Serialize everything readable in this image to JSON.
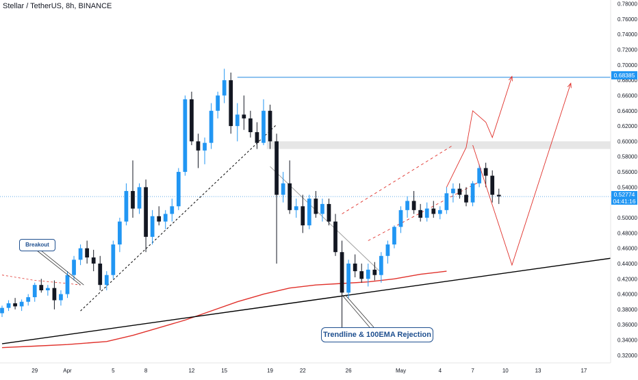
{
  "header": {
    "title": "Stellar / TetherUS, 8h, BINANCE"
  },
  "price_tags": {
    "level": "0.68385",
    "current": "0.52774",
    "countdown": "04:41:16"
  },
  "annotations": {
    "breakout": "Breakout",
    "trendline": "Trendline & 100EMA Rejection"
  },
  "colors": {
    "up": "#2196f3",
    "down": "#131722",
    "ema": "#e0302a",
    "trendline": "#000000",
    "projection": "#e0302a",
    "level": "#4a9ee6",
    "zone": "#e6e6e6",
    "axis_text": "#131722"
  },
  "chart_data": {
    "type": "candlestick",
    "title": "Stellar / TetherUS, 8h, BINANCE",
    "xlabel": "",
    "ylabel": "",
    "ylim": [
      0.31,
      0.785
    ],
    "xlim": [
      0,
      91
    ],
    "yticks": [
      "0.78000",
      "0.76000",
      "0.74000",
      "0.72000",
      "0.70000",
      "0.68000",
      "0.66000",
      "0.64000",
      "0.62000",
      "0.60000",
      "0.58000",
      "0.56000",
      "0.54000",
      "0.52000",
      "0.50000",
      "0.48000",
      "0.46000",
      "0.44000",
      "0.42000",
      "0.40000",
      "0.38000",
      "0.36000",
      "0.34000",
      "0.32000"
    ],
    "xticks": [
      {
        "label": "29",
        "x": 5
      },
      {
        "label": "Apr",
        "x": 10
      },
      {
        "label": "5",
        "x": 17
      },
      {
        "label": "8",
        "x": 22
      },
      {
        "label": "12",
        "x": 29
      },
      {
        "label": "15",
        "x": 34
      },
      {
        "label": "19",
        "x": 41
      },
      {
        "label": "22",
        "x": 46
      },
      {
        "label": "26",
        "x": 53
      },
      {
        "label": "May",
        "x": 61
      },
      {
        "label": "4",
        "x": 67
      },
      {
        "label": "7",
        "x": 72
      },
      {
        "label": "10",
        "x": 77
      },
      {
        "label": "13",
        "x": 82
      },
      {
        "label": "17",
        "x": 89
      }
    ],
    "ohlc": [
      [
        0.375,
        0.385,
        0.37,
        0.382
      ],
      [
        0.382,
        0.392,
        0.378,
        0.388
      ],
      [
        0.388,
        0.395,
        0.38,
        0.384
      ],
      [
        0.384,
        0.393,
        0.378,
        0.39
      ],
      [
        0.39,
        0.4,
        0.385,
        0.396
      ],
      [
        0.396,
        0.415,
        0.39,
        0.412
      ],
      [
        0.412,
        0.42,
        0.402,
        0.405
      ],
      [
        0.405,
        0.412,
        0.398,
        0.408
      ],
      [
        0.408,
        0.418,
        0.38,
        0.392
      ],
      [
        0.392,
        0.405,
        0.385,
        0.4
      ],
      [
        0.4,
        0.43,
        0.395,
        0.425
      ],
      [
        0.425,
        0.45,
        0.418,
        0.445
      ],
      [
        0.445,
        0.465,
        0.438,
        0.46
      ],
      [
        0.46,
        0.47,
        0.44,
        0.448
      ],
      [
        0.448,
        0.458,
        0.43,
        0.44
      ],
      [
        0.44,
        0.45,
        0.405,
        0.412
      ],
      [
        0.412,
        0.43,
        0.405,
        0.425
      ],
      [
        0.425,
        0.47,
        0.42,
        0.465
      ],
      [
        0.465,
        0.5,
        0.455,
        0.495
      ],
      [
        0.495,
        0.545,
        0.49,
        0.535
      ],
      [
        0.535,
        0.575,
        0.5,
        0.512
      ],
      [
        0.512,
        0.545,
        0.505,
        0.54
      ],
      [
        0.54,
        0.55,
        0.455,
        0.475
      ],
      [
        0.475,
        0.51,
        0.465,
        0.502
      ],
      [
        0.502,
        0.515,
        0.49,
        0.495
      ],
      [
        0.495,
        0.51,
        0.485,
        0.505
      ],
      [
        0.505,
        0.525,
        0.495,
        0.515
      ],
      [
        0.515,
        0.565,
        0.51,
        0.56
      ],
      [
        0.56,
        0.66,
        0.555,
        0.655
      ],
      [
        0.655,
        0.665,
        0.595,
        0.6
      ],
      [
        0.6,
        0.61,
        0.565,
        0.588
      ],
      [
        0.588,
        0.605,
        0.57,
        0.598
      ],
      [
        0.598,
        0.65,
        0.59,
        0.64
      ],
      [
        0.64,
        0.665,
        0.63,
        0.66
      ],
      [
        0.66,
        0.695,
        0.65,
        0.68
      ],
      [
        0.68,
        0.69,
        0.61,
        0.62
      ],
      [
        0.62,
        0.65,
        0.6,
        0.635
      ],
      [
        0.635,
        0.66,
        0.615,
        0.63
      ],
      [
        0.63,
        0.64,
        0.605,
        0.612
      ],
      [
        0.612,
        0.625,
        0.59,
        0.598
      ],
      [
        0.598,
        0.655,
        0.595,
        0.64
      ],
      [
        0.64,
        0.648,
        0.59,
        0.6
      ],
      [
        0.6,
        0.61,
        0.44,
        0.53
      ],
      [
        0.53,
        0.56,
        0.52,
        0.545
      ],
      [
        0.545,
        0.575,
        0.505,
        0.51
      ],
      [
        0.51,
        0.525,
        0.5,
        0.515
      ],
      [
        0.515,
        0.53,
        0.48,
        0.49
      ],
      [
        0.49,
        0.53,
        0.485,
        0.525
      ],
      [
        0.525,
        0.535,
        0.5,
        0.505
      ],
      [
        0.505,
        0.525,
        0.495,
        0.518
      ],
      [
        0.518,
        0.525,
        0.49,
        0.495
      ],
      [
        0.495,
        0.505,
        0.45,
        0.455
      ],
      [
        0.455,
        0.47,
        0.355,
        0.402
      ],
      [
        0.402,
        0.445,
        0.395,
        0.44
      ],
      [
        0.44,
        0.452,
        0.422,
        0.43
      ],
      [
        0.43,
        0.44,
        0.415,
        0.42
      ],
      [
        0.42,
        0.44,
        0.41,
        0.432
      ],
      [
        0.432,
        0.442,
        0.418,
        0.425
      ],
      [
        0.425,
        0.455,
        0.415,
        0.45
      ],
      [
        0.45,
        0.47,
        0.44,
        0.465
      ],
      [
        0.465,
        0.49,
        0.46,
        0.488
      ],
      [
        0.488,
        0.515,
        0.48,
        0.51
      ],
      [
        0.51,
        0.528,
        0.5,
        0.522
      ],
      [
        0.522,
        0.535,
        0.505,
        0.51
      ],
      [
        0.51,
        0.518,
        0.495,
        0.5
      ],
      [
        0.5,
        0.52,
        0.495,
        0.512
      ],
      [
        0.512,
        0.522,
        0.5,
        0.505
      ],
      [
        0.505,
        0.515,
        0.498,
        0.51
      ],
      [
        0.51,
        0.54,
        0.505,
        0.532
      ],
      [
        0.532,
        0.545,
        0.52,
        0.538
      ],
      [
        0.538,
        0.545,
        0.525,
        0.53
      ],
      [
        0.53,
        0.54,
        0.515,
        0.52
      ],
      [
        0.52,
        0.548,
        0.515,
        0.545
      ],
      [
        0.545,
        0.57,
        0.54,
        0.565
      ],
      [
        0.565,
        0.572,
        0.54,
        0.555
      ],
      [
        0.555,
        0.562,
        0.52,
        0.53
      ],
      [
        0.53,
        0.538,
        0.518,
        0.528
      ]
    ],
    "ema100": [
      [
        0,
        0.33
      ],
      [
        5,
        0.332
      ],
      [
        10,
        0.334
      ],
      [
        16,
        0.338
      ],
      [
        20,
        0.346
      ],
      [
        24,
        0.356
      ],
      [
        28,
        0.366
      ],
      [
        32,
        0.378
      ],
      [
        36,
        0.39
      ],
      [
        40,
        0.4
      ],
      [
        44,
        0.408
      ],
      [
        48,
        0.412
      ],
      [
        52,
        0.414
      ],
      [
        56,
        0.416
      ],
      [
        60,
        0.42
      ],
      [
        64,
        0.426
      ],
      [
        68,
        0.43
      ]
    ],
    "ema_prelude": [
      [
        0,
        0.425
      ],
      [
        5,
        0.418
      ],
      [
        10,
        0.414
      ],
      [
        12,
        0.412
      ]
    ],
    "trendlines": {
      "main_support": [
        [
          0,
          0.335
        ],
        [
          94,
          0.448
        ]
      ],
      "dashed_support": [
        [
          12,
          0.378
        ],
        [
          42,
          0.622
        ]
      ],
      "descending": [
        [
          41,
          0.567
        ],
        [
          58,
          0.428
        ]
      ],
      "channel_upper": [
        [
          52,
          0.505
        ],
        [
          69,
          0.595
        ]
      ],
      "channel_lower": [
        [
          56,
          0.47
        ],
        [
          73,
          0.547
        ]
      ]
    },
    "zone": [
      0.59,
      0.6
    ],
    "level": 0.68385,
    "projection": [
      [
        68,
        0.54
      ],
      [
        71,
        0.592
      ],
      [
        72,
        0.64
      ],
      [
        74,
        0.625
      ],
      [
        75,
        0.605
      ],
      [
        78,
        0.685
      ]
    ],
    "projection_bear": [
      [
        72,
        0.595
      ],
      [
        78,
        0.438
      ],
      [
        87,
        0.676
      ]
    ]
  }
}
